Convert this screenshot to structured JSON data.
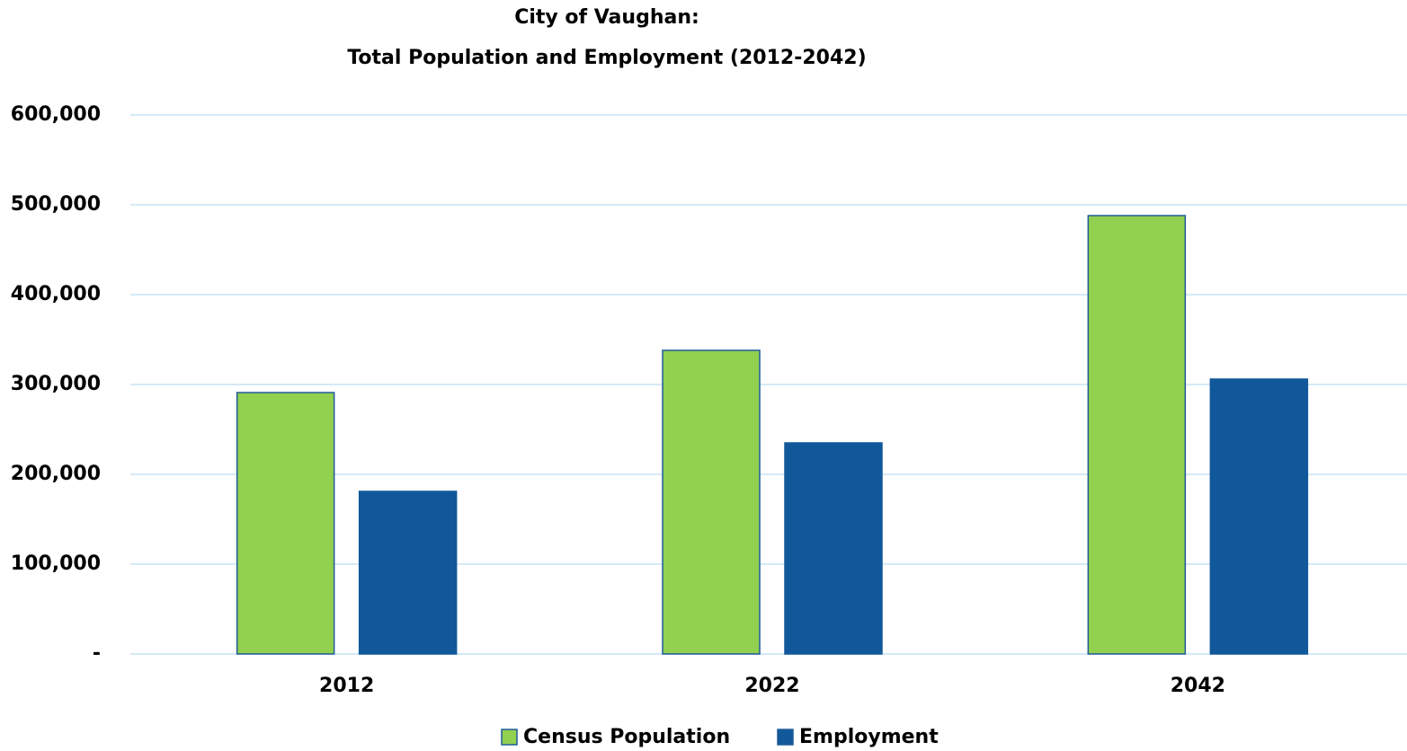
{
  "chart_data": {
    "type": "bar",
    "title": [
      "City of Vaughan:",
      "Total Population and Employment (2012-2042)"
    ],
    "categories": [
      "2012",
      "2022",
      "2042"
    ],
    "series": [
      {
        "name": "Census Population",
        "color": "#92d050",
        "values": [
          291000,
          338000,
          488000
        ]
      },
      {
        "name": "Employment",
        "color": "#11589a",
        "values": [
          181000,
          235000,
          306000
        ]
      }
    ],
    "ylim": [
      0,
      600000
    ],
    "yticks": [
      {
        "value": 0,
        "label": "-"
      },
      {
        "value": 100000,
        "label": "100,000"
      },
      {
        "value": 200000,
        "label": "200,000"
      },
      {
        "value": 300000,
        "label": "300,000"
      },
      {
        "value": 400000,
        "label": "400,000"
      },
      {
        "value": 500000,
        "label": "500,000"
      },
      {
        "value": 600000,
        "label": "600,000"
      }
    ],
    "grid": true,
    "legend": "bottom"
  }
}
